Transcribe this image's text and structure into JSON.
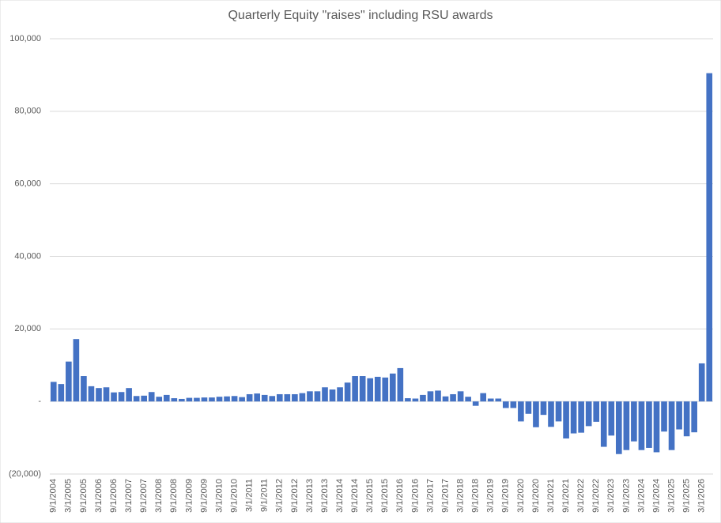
{
  "chart_data": {
    "type": "bar",
    "title": "Quarterly Equity \"raises\" including RSU awards",
    "categories": [
      "9/1/2004",
      null,
      "3/1/2005",
      null,
      "9/1/2005",
      null,
      "3/1/2006",
      null,
      "9/1/2006",
      null,
      "3/1/2007",
      null,
      "9/1/2007",
      null,
      "3/1/2008",
      null,
      "9/1/2008",
      null,
      "3/1/2009",
      null,
      "9/1/2009",
      null,
      "3/1/2010",
      null,
      "9/1/2010",
      null,
      "3/1/2011",
      null,
      "9/1/2011",
      null,
      "3/1/2012",
      null,
      "9/1/2012",
      null,
      "3/1/2013",
      null,
      "9/1/2013",
      null,
      "3/1/2014",
      null,
      "9/1/2014",
      null,
      "3/1/2015",
      null,
      "9/1/2015",
      null,
      "3/1/2016",
      null,
      "9/1/2016",
      null,
      "3/1/2017",
      null,
      "9/1/2017",
      null,
      "3/1/2018",
      null,
      "9/1/2018",
      null,
      "3/1/2019",
      null,
      "9/1/2019",
      null,
      "3/1/2020",
      null,
      "9/1/2020",
      null,
      "3/1/2021",
      null,
      "9/1/2021",
      null,
      "3/1/2022",
      null,
      "9/1/2022",
      null,
      "3/1/2023",
      null,
      "9/1/2023",
      null,
      "3/1/2024",
      null,
      "9/1/2024",
      null,
      "3/1/2025",
      null,
      "9/1/2025",
      null,
      "3/1/2026",
      null
    ],
    "values": [
      5400,
      4800,
      11000,
      17200,
      7000,
      4200,
      3700,
      3900,
      2500,
      2600,
      3700,
      1500,
      1600,
      2600,
      1300,
      1800,
      900,
      700,
      1000,
      1000,
      1100,
      1100,
      1300,
      1400,
      1500,
      1200,
      2000,
      2200,
      1800,
      1500,
      2000,
      2000,
      2000,
      2300,
      2800,
      2800,
      3900,
      3300,
      3900,
      5200,
      7000,
      7000,
      6400,
      6800,
      6600,
      7700,
      9200,
      900,
      800,
      1800,
      2800,
      3000,
      1400,
      2000,
      2800,
      1300,
      -1200,
      2300,
      800,
      800,
      -1800,
      -1800,
      -5500,
      -3400,
      -7100,
      -3700,
      -7000,
      -5500,
      -10200,
      -8800,
      -8600,
      -6800,
      -5600,
      -12500,
      -9400,
      -14500,
      -13400,
      -11000,
      -13400,
      -12800,
      -14000,
      -8300,
      -13400,
      -7700,
      -9600,
      -8500,
      10500,
      90500
    ],
    "color": "#4472c4",
    "ylim": [
      -20000,
      100000
    ],
    "yticks": [
      {
        "value": -20000,
        "label": "(20,000)"
      },
      {
        "value": 0,
        "label": "-"
      },
      {
        "value": 20000,
        "label": "20,000"
      },
      {
        "value": 40000,
        "label": "40,000"
      },
      {
        "value": 60000,
        "label": "60,000"
      },
      {
        "value": 80000,
        "label": "80,000"
      },
      {
        "value": 100000,
        "label": "100,000"
      }
    ],
    "grid": true
  }
}
